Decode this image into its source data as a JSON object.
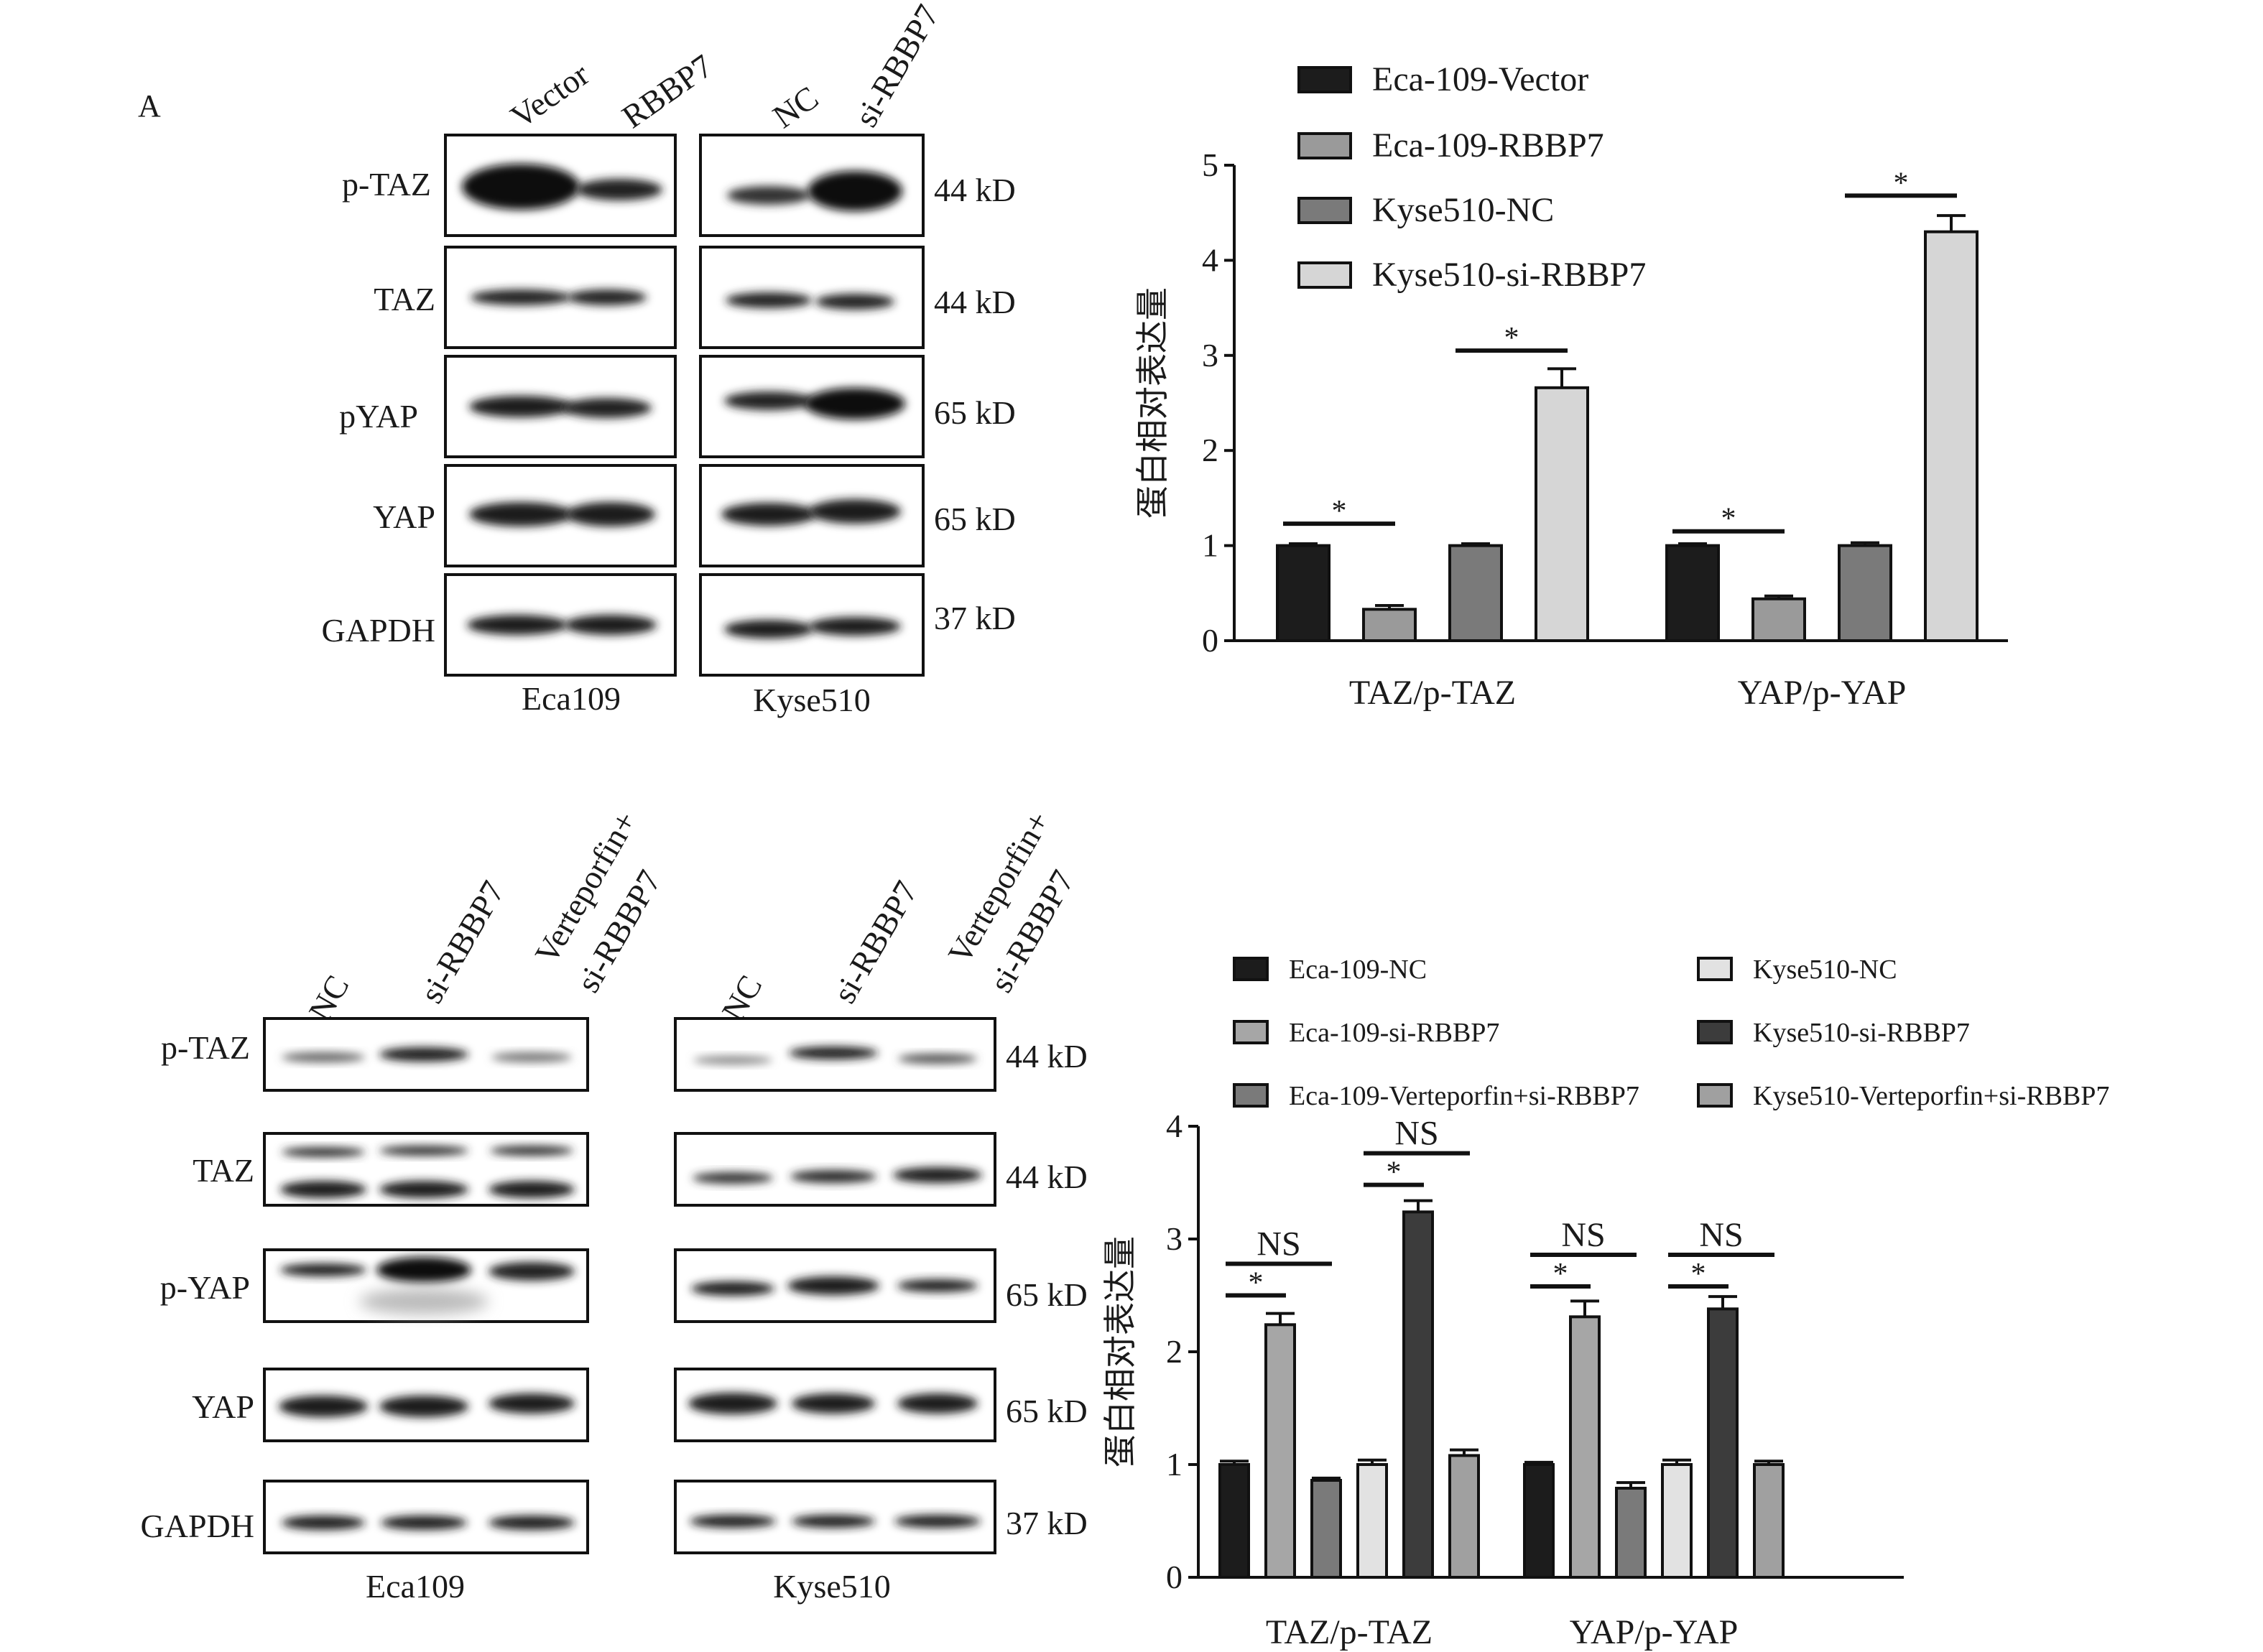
{
  "panel_label": "A",
  "top": {
    "eca_lanes": [
      "Vector",
      "RBBP7"
    ],
    "kyse_lanes": [
      "NC",
      "si-RBBP7"
    ],
    "proteins": [
      "p-TAZ",
      "TAZ",
      "pYAP",
      "YAP",
      "GAPDH"
    ],
    "weights": [
      "44 kD",
      "44 kD",
      "65 kD",
      "65 kD",
      "37 kD"
    ],
    "cell_lines": [
      "Eca109",
      "Kyse510"
    ]
  },
  "bottom": {
    "lanes": [
      "NC",
      "si-RBBP7",
      "Verteporfin+ si-RBBP7"
    ],
    "lane_lines": [
      [
        "NC"
      ],
      [
        "si-RBBP7"
      ],
      [
        "Verteporfin+",
        "si-RBBP7"
      ]
    ],
    "proteins": [
      "p-TAZ",
      "TAZ",
      "p-YAP",
      "YAP",
      "GAPDH"
    ],
    "weights": [
      "44 kD",
      "44 kD",
      "65 kD",
      "65 kD",
      "37 kD"
    ],
    "cell_lines": [
      "Eca109",
      "Kyse510"
    ]
  },
  "colors": {
    "black": "#1c1c1c",
    "mid_gray": "#9a9a9a",
    "dark_gray": "#7a7a7a",
    "light_gray": "#d6d6d6",
    "darker": "#3c3c3c",
    "gray2": "#a6a6a6"
  },
  "chart_data": [
    {
      "type": "bar",
      "title": "",
      "xlabel": "",
      "ylabel": "蛋白相对表达量",
      "ylim": [
        0,
        5
      ],
      "yticks": [
        0,
        1,
        2,
        3,
        4,
        5
      ],
      "categories": [
        "TAZ/p-TAZ",
        "YAP/p-YAP"
      ],
      "series": [
        {
          "name": "Eca-109-Vector",
          "values": [
            1.0,
            1.0
          ],
          "errors": [
            0.02,
            0.02
          ],
          "color": "#1c1c1c"
        },
        {
          "name": "Eca-109-RBBP7",
          "values": [
            0.33,
            0.44
          ],
          "errors": [
            0.04,
            0.03
          ],
          "color": "#9a9a9a"
        },
        {
          "name": "Kyse510-NC",
          "values": [
            1.0,
            1.0
          ],
          "errors": [
            0.02,
            0.03
          ],
          "color": "#7a7a7a"
        },
        {
          "name": "Kyse510-si-RBBP7",
          "values": [
            2.66,
            4.3
          ],
          "errors": [
            0.2,
            0.17
          ],
          "color": "#d6d6d6"
        }
      ],
      "significance": [
        {
          "category": 0,
          "from": 0,
          "to": 1,
          "label": "*",
          "y": 1.23
        },
        {
          "category": 0,
          "from": 2,
          "to": 3,
          "label": "*",
          "y": 3.05
        },
        {
          "category": 1,
          "from": 0,
          "to": 1,
          "label": "*",
          "y": 1.15
        },
        {
          "category": 1,
          "from": 2,
          "to": 3,
          "label": "*",
          "y": 4.68
        }
      ],
      "legend": "top-left"
    },
    {
      "type": "bar",
      "title": "",
      "xlabel": "",
      "ylabel": "蛋白相对表达量",
      "ylim": [
        0,
        4
      ],
      "yticks": [
        0,
        1,
        2,
        3,
        4
      ],
      "categories": [
        "TAZ/p-TAZ",
        "YAP/p-YAP"
      ],
      "series": [
        {
          "name": "Eca-109-NC",
          "values": [
            1.0,
            1.0
          ],
          "errors": [
            0.03,
            0.02
          ],
          "color": "#1c1c1c"
        },
        {
          "name": "Eca-109-si-RBBP7",
          "values": [
            2.24,
            2.31
          ],
          "errors": [
            0.1,
            0.14
          ],
          "color": "#a6a6a6"
        },
        {
          "name": "Eca-109-Verteporfin+si-RBBP7",
          "values": [
            0.86,
            0.79
          ],
          "errors": [
            0.02,
            0.05
          ],
          "color": "#7a7a7a"
        },
        {
          "name": "Kyse510-NC",
          "values": [
            1.0,
            1.0
          ],
          "errors": [
            0.04,
            0.04
          ],
          "color": "#e2e2e2"
        },
        {
          "name": "Kyse510-si-RBBP7",
          "values": [
            3.24,
            2.38
          ],
          "errors": [
            0.1,
            0.11
          ],
          "color": "#3c3c3c"
        },
        {
          "name": "Kyse510-Verteporfin+si-RBBP7",
          "values": [
            1.08,
            1.0
          ],
          "errors": [
            0.05,
            0.03
          ],
          "color": "#a0a0a0"
        }
      ],
      "significance": [
        {
          "category": 0,
          "from": 0,
          "to": 1,
          "label": "*",
          "y": 2.5
        },
        {
          "category": 0,
          "from": 0,
          "to": 2,
          "label": "NS",
          "y": 2.78
        },
        {
          "category": 0,
          "from": 3,
          "to": 4,
          "label": "*",
          "y": 3.48
        },
        {
          "category": 0,
          "from": 3,
          "to": 5,
          "label": "NS",
          "y": 3.76
        },
        {
          "category": 1,
          "from": 0,
          "to": 1,
          "label": "*",
          "y": 2.58
        },
        {
          "category": 1,
          "from": 0,
          "to": 2,
          "label": "NS",
          "y": 2.86
        },
        {
          "category": 1,
          "from": 3,
          "to": 4,
          "label": "*",
          "y": 2.58
        },
        {
          "category": 1,
          "from": 3,
          "to": 5,
          "label": "NS",
          "y": 2.86
        }
      ],
      "legend": "top"
    }
  ]
}
